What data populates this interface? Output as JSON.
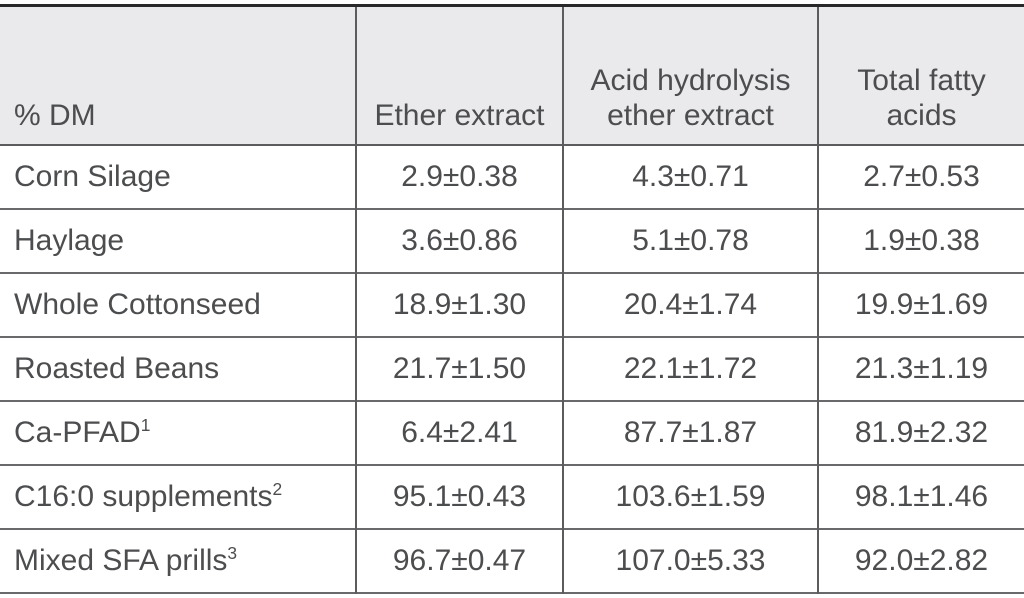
{
  "chart_data": {
    "type": "table",
    "unit_label": "% DM",
    "columns": [
      "% DM",
      "Ether extract",
      "Acid hydrolysis ether extract",
      "Total fatty acids"
    ],
    "rows": [
      {
        "label": "Corn Silage",
        "sup": "",
        "values": [
          "2.9±0.38",
          "4.3±0.71",
          "2.7±0.53"
        ]
      },
      {
        "label": "Haylage",
        "sup": "",
        "values": [
          "3.6±0.86",
          "5.1±0.78",
          "1.9±0.38"
        ]
      },
      {
        "label": "Whole Cottonseed",
        "sup": "",
        "values": [
          "18.9±1.30",
          "20.4±1.74",
          "19.9±1.69"
        ]
      },
      {
        "label": "Roasted Beans",
        "sup": "",
        "values": [
          "21.7±1.50",
          "22.1±1.72",
          "21.3±1.19"
        ]
      },
      {
        "label": "Ca-PFAD",
        "sup": "1",
        "values": [
          "6.4±2.41",
          "87.7±1.87",
          "81.9±2.32"
        ]
      },
      {
        "label": "C16:0 supplements",
        "sup": "2",
        "values": [
          "95.1±0.43",
          "103.6±1.59",
          "98.1±1.46"
        ]
      },
      {
        "label": "Mixed SFA prills",
        "sup": "3",
        "values": [
          "96.7±0.47",
          "107.0±5.33",
          "92.0±2.82"
        ]
      }
    ],
    "layout": {
      "header_background": "#eaeaec",
      "text_color": "#4c4d4f",
      "grid": "horizontal-and-vertical-internal"
    }
  }
}
